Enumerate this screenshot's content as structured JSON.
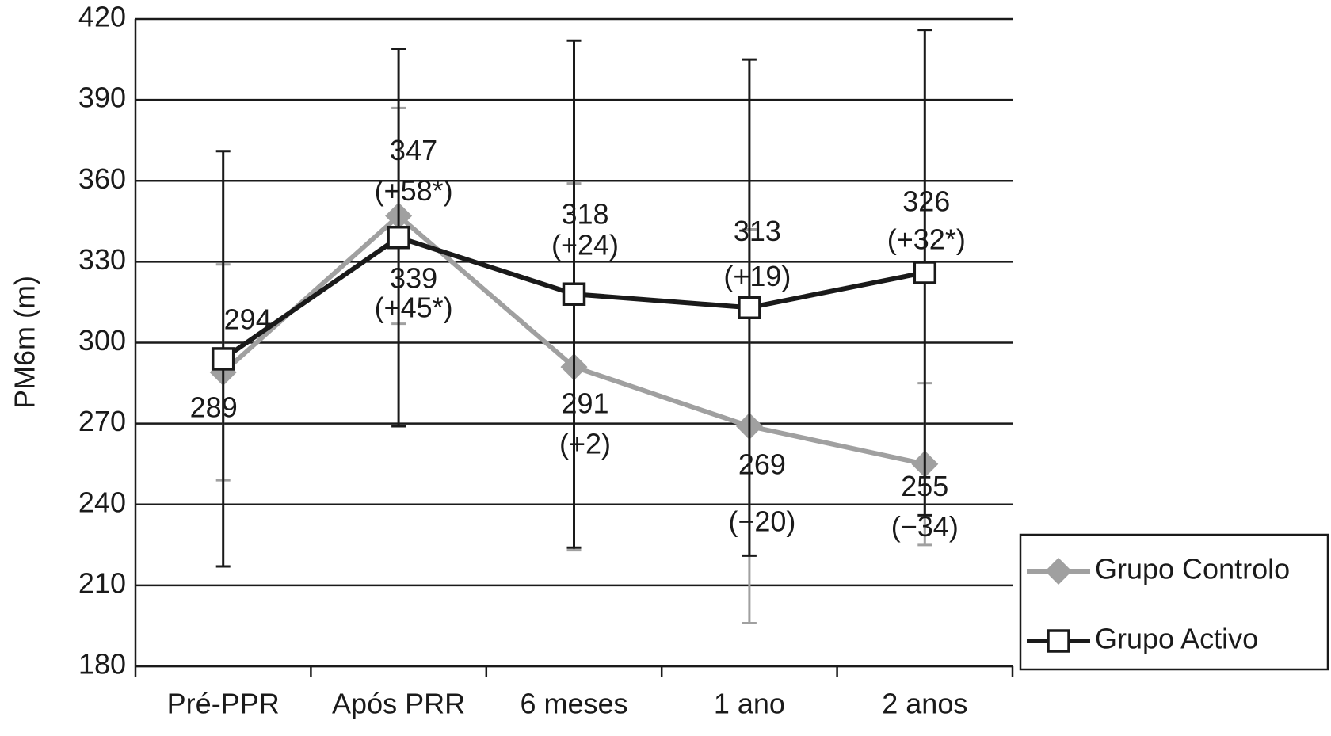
{
  "chart_data": {
    "type": "line",
    "y_label": "PM6m (m)",
    "categories": [
      "Pré-PPR",
      "Após PRR",
      "6 meses",
      "1 ano",
      "2 anos"
    ],
    "ylim": [
      180,
      420
    ],
    "yticks": [
      180,
      210,
      240,
      270,
      300,
      330,
      360,
      390,
      420
    ],
    "grid": true,
    "legend": "bottom-right",
    "series": [
      {
        "name": "Grupo Controlo",
        "color": "#a0a0a0",
        "marker": "diamond",
        "values": [
          289,
          347,
          291,
          269,
          255
        ],
        "errors": [
          40,
          40,
          68,
          73,
          30
        ],
        "change_labels": [
          null,
          "(+58*)",
          "(+2)",
          "(−20)",
          "(−34)"
        ]
      },
      {
        "name": "Grupo Activo",
        "color": "#1a1a1a",
        "marker": "square",
        "values": [
          294,
          339,
          318,
          313,
          326
        ],
        "errors": [
          77,
          70,
          94,
          92,
          90
        ],
        "change_labels": [
          null,
          "(+45*)",
          "(+24)",
          "(+19)",
          "(+32*)"
        ]
      }
    ]
  }
}
